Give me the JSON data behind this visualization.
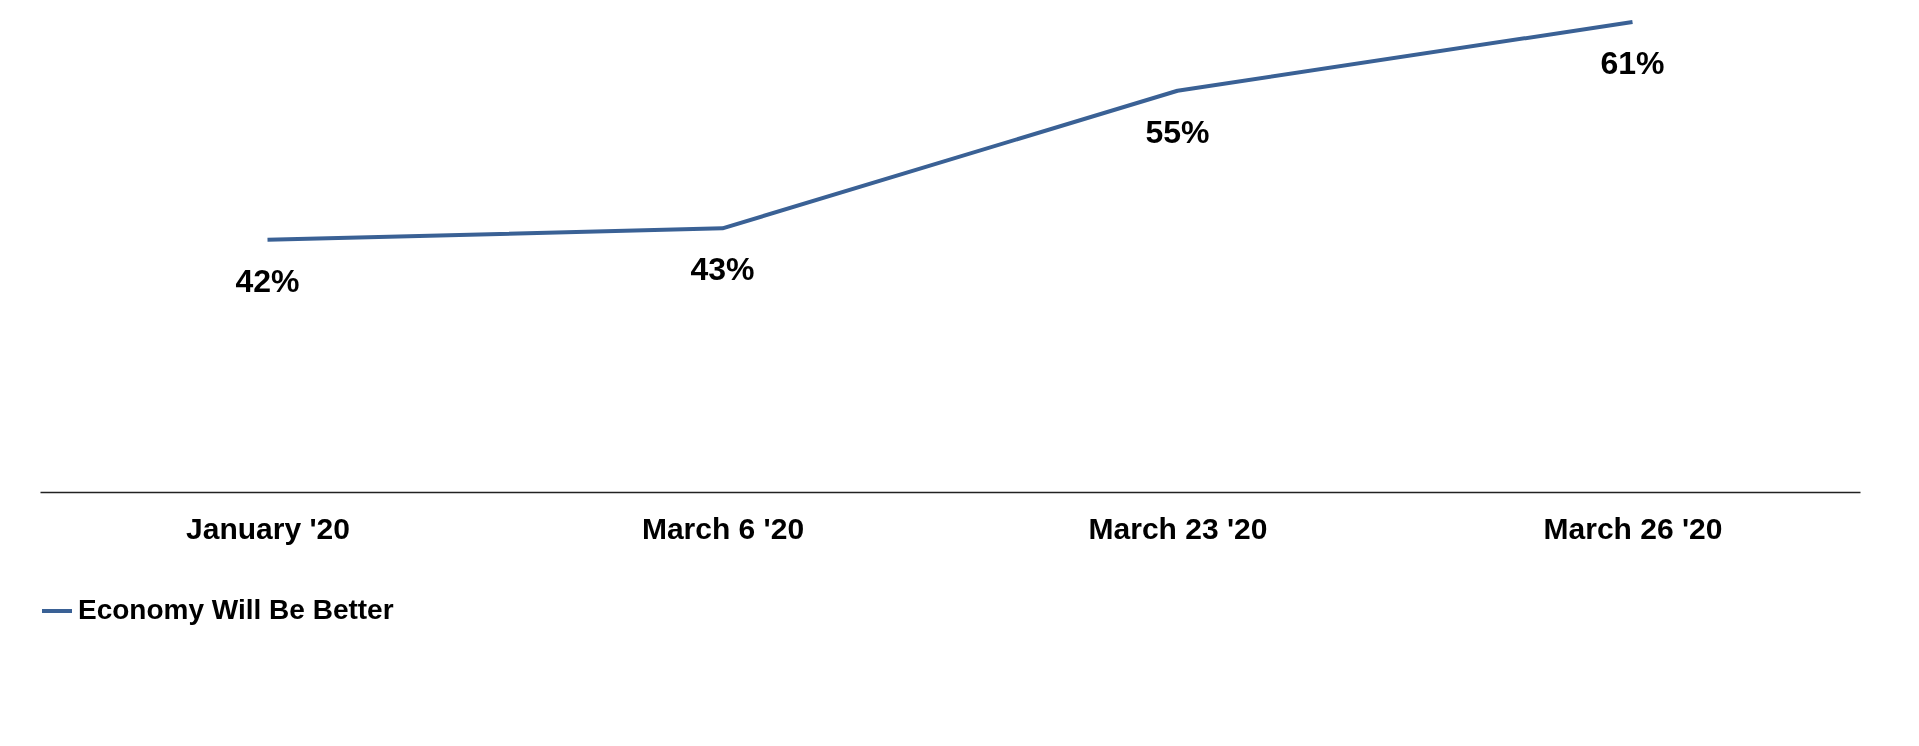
{
  "chart_data": {
    "type": "line",
    "categories": [
      "January '20",
      "March 6 '20",
      "March 23 '20",
      "March 26 '20"
    ],
    "series": [
      {
        "name": "Economy Will Be Better",
        "color": "#3a6195",
        "values": [
          42,
          43,
          55,
          61
        ],
        "value_labels": [
          "42%",
          "43%",
          "55%",
          "61%"
        ]
      }
    ],
    "tick_labels": "x",
    "legend": "bottom",
    "grid": false
  }
}
